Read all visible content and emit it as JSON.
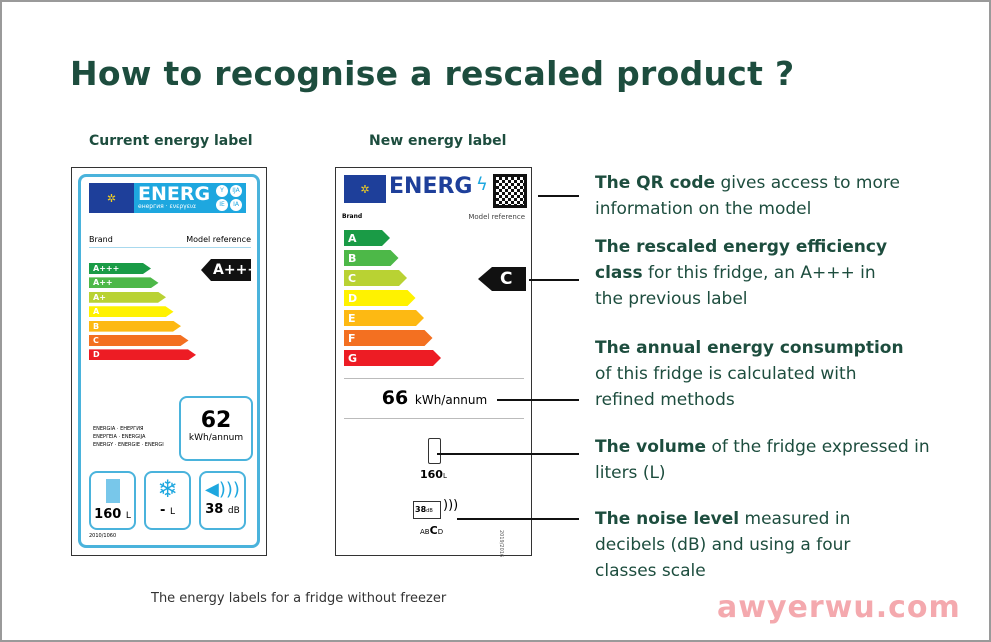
{
  "title": "How to recognise a rescaled product ?",
  "current": {
    "heading": "Current energy label",
    "energ": "ENERG",
    "langs": [
      "Y",
      "IJA",
      "IE",
      "IA"
    ],
    "energ_sub": "енергия · ενεργεια",
    "brand": "Brand",
    "model": "Model reference",
    "classes": [
      "A+++",
      "A++",
      "A+",
      "A",
      "B",
      "C",
      "D"
    ],
    "class_colors": [
      "#1a9b46",
      "#4db848",
      "#b9d233",
      "#fff200",
      "#fdb913",
      "#f37021",
      "#ed1c24"
    ],
    "rating": "A+++",
    "consumption": "62",
    "consumption_unit": "kWh/annum",
    "energia_lines": [
      "ENERGIA · ЕНЕРГИЯ",
      "ΕΝΕΡΓΕΙΑ · ENERGIJA",
      "ENERGY · ENERGIE · ENERGI"
    ],
    "volume": "160",
    "volume_unit": "L",
    "freezer": "-",
    "freezer_unit": "L",
    "noise": "38",
    "noise_unit": "dB",
    "regulation": "2010/1060"
  },
  "new": {
    "heading": "New energy label",
    "energ": "ENERG",
    "brand": "Brand",
    "model": "Model reference",
    "classes": [
      "A",
      "B",
      "C",
      "D",
      "E",
      "F",
      "G"
    ],
    "class_colors": [
      "#1a9b46",
      "#4db848",
      "#b9d233",
      "#fff200",
      "#fdb913",
      "#f37021",
      "#ed1c24"
    ],
    "rating": "C",
    "consumption": "66",
    "consumption_unit": "kWh/annum",
    "volume": "160",
    "volume_unit": "L",
    "noise": "38",
    "noise_unit": "dB",
    "noise_classes": [
      "A",
      "B",
      "C",
      "D"
    ],
    "regulation": "2019/2016"
  },
  "annotations": [
    {
      "bold": "The QR code",
      "rest": " gives access to more information on the model"
    },
    {
      "bold": "The rescaled energy efficiency class",
      "rest": " for this fridge, an A+++ in the previous label"
    },
    {
      "bold": "The annual energy consumption",
      "rest": " of this fridge is calculated with refined methods"
    },
    {
      "bold": "The volume",
      "rest": " of the fridge expressed in liters (L)"
    },
    {
      "bold": "The noise level",
      "rest": " measured in decibels (dB) and using a four classes scale"
    }
  ],
  "caption": "The energy labels for a fridge without freezer",
  "watermark": "awyerwu.com"
}
